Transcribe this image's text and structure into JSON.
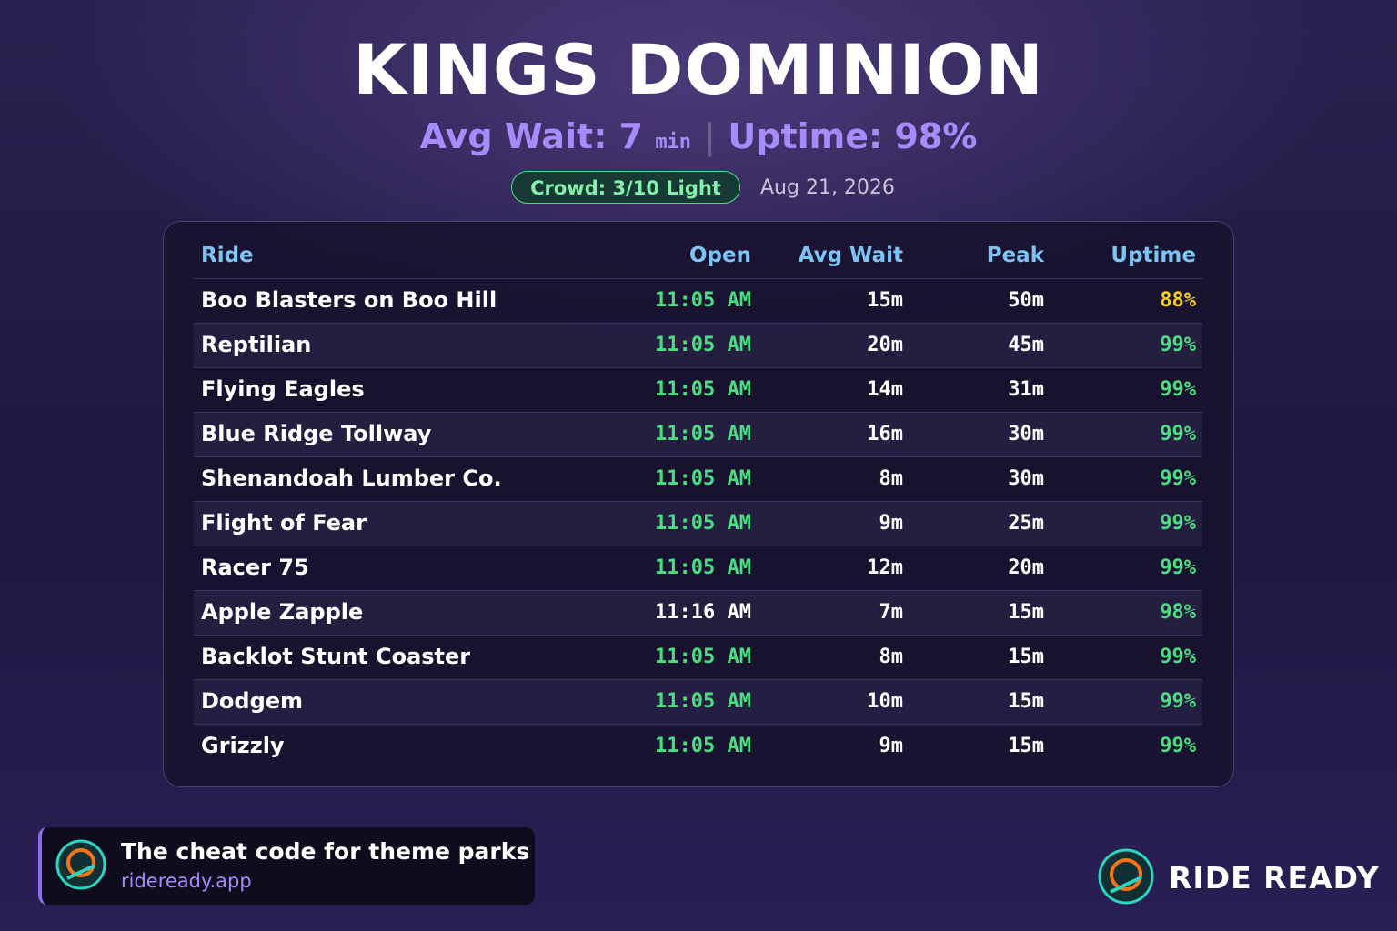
{
  "header": {
    "title": "KINGS DOMINION",
    "avg_wait": "Avg Wait: 7",
    "avg_unit": "min",
    "separator": "|",
    "uptime": "Uptime: 98%",
    "crowd": "Crowd: 3/10 Light",
    "date": "Aug 21, 2026"
  },
  "table": {
    "columns": [
      "Ride",
      "Open",
      "Avg Wait",
      "Peak",
      "Uptime"
    ],
    "colors": {
      "green": "#4ade80",
      "yellow": "#facc15",
      "white": "#ffffff"
    },
    "rows": [
      {
        "ride": "Boo Blasters on Boo Hill",
        "open": "11:05 AM",
        "avg_wait": "15m",
        "peak": "50m",
        "uptime": "88%",
        "open_color": "green",
        "uptime_color": "yellow"
      },
      {
        "ride": "Reptilian",
        "open": "11:05 AM",
        "avg_wait": "20m",
        "peak": "45m",
        "uptime": "99%",
        "open_color": "green",
        "uptime_color": "green"
      },
      {
        "ride": "Flying Eagles",
        "open": "11:05 AM",
        "avg_wait": "14m",
        "peak": "31m",
        "uptime": "99%",
        "open_color": "green",
        "uptime_color": "green"
      },
      {
        "ride": "Blue Ridge Tollway",
        "open": "11:05 AM",
        "avg_wait": "16m",
        "peak": "30m",
        "uptime": "99%",
        "open_color": "green",
        "uptime_color": "green"
      },
      {
        "ride": "Shenandoah Lumber Co.",
        "open": "11:05 AM",
        "avg_wait": "8m",
        "peak": "30m",
        "uptime": "99%",
        "open_color": "green",
        "uptime_color": "green"
      },
      {
        "ride": "Flight of Fear",
        "open": "11:05 AM",
        "avg_wait": "9m",
        "peak": "25m",
        "uptime": "99%",
        "open_color": "green",
        "uptime_color": "green"
      },
      {
        "ride": "Racer 75",
        "open": "11:05 AM",
        "avg_wait": "12m",
        "peak": "20m",
        "uptime": "99%",
        "open_color": "green",
        "uptime_color": "green"
      },
      {
        "ride": "Apple Zapple",
        "open": "11:16 AM",
        "avg_wait": "7m",
        "peak": "15m",
        "uptime": "98%",
        "open_color": "white",
        "uptime_color": "green"
      },
      {
        "ride": "Backlot Stunt Coaster",
        "open": "11:05 AM",
        "avg_wait": "8m",
        "peak": "15m",
        "uptime": "99%",
        "open_color": "green",
        "uptime_color": "green"
      },
      {
        "ride": "Dodgem",
        "open": "11:05 AM",
        "avg_wait": "10m",
        "peak": "15m",
        "uptime": "99%",
        "open_color": "green",
        "uptime_color": "green"
      },
      {
        "ride": "Grizzly",
        "open": "11:05 AM",
        "avg_wait": "9m",
        "peak": "15m",
        "uptime": "99%",
        "open_color": "green",
        "uptime_color": "green"
      }
    ]
  },
  "footer": {
    "tagline": "The cheat code for theme parks",
    "url": "rideready.app",
    "brand": "RIDE READY"
  }
}
